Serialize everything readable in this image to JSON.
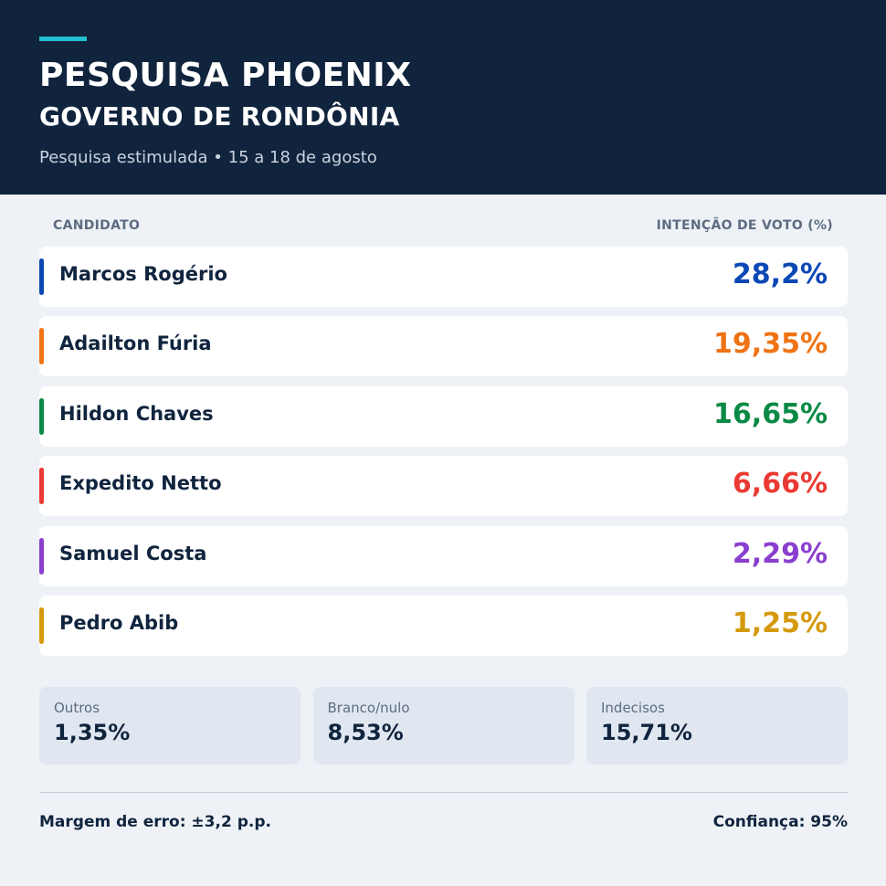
{
  "header": {
    "title": "PESQUISA PHOENIX",
    "subtitle": "GOVERNO DE RONDÔNIA",
    "meta": "Pesquisa estimulada • 15 a 18 de agosto"
  },
  "table": {
    "col_left": "CANDIDATO",
    "col_right": "INTENÇÃO DE VOTO (%)"
  },
  "chart_data": {
    "type": "table",
    "title": "PESQUISA PHOENIX",
    "subtitle": "GOVERNO DE RONDÔNIA",
    "columns": [
      "CANDIDATO",
      "INTENÇÃO DE VOTO (%)"
    ],
    "rows": [
      {
        "name": "Marcos Rogério",
        "value": 28.2,
        "label": "28,2%",
        "color": "#0b47b5"
      },
      {
        "name": "Adailton Fúria",
        "value": 19.35,
        "label": "19,35%",
        "color": "#f07314"
      },
      {
        "name": "Hildon Chaves",
        "value": 16.65,
        "label": "16,65%",
        "color": "#0a8a45"
      },
      {
        "name": "Expedito Netto",
        "value": 6.66,
        "label": "6,66%",
        "color": "#ea3a33"
      },
      {
        "name": "Samuel Costa",
        "value": 2.29,
        "label": "2,29%",
        "color": "#8a3fcf"
      },
      {
        "name": "Pedro Abib",
        "value": 1.25,
        "label": "1,25%",
        "color": "#d49a0c"
      }
    ],
    "others": [
      {
        "label": "Outros",
        "value": 1.35,
        "text": "1,35%"
      },
      {
        "label": "Branco/nulo",
        "value": 8.53,
        "text": "8,53%"
      },
      {
        "label": "Indecisos",
        "value": 15.71,
        "text": "15,71%"
      }
    ]
  },
  "footer": {
    "margin": "Margem de erro: ±3,2 p.p.",
    "confidence": "Confiança: 95%"
  },
  "colors": {
    "header_bg": "#11243d",
    "accent": "#22bfd0",
    "page_bg": "#eef2f7"
  }
}
